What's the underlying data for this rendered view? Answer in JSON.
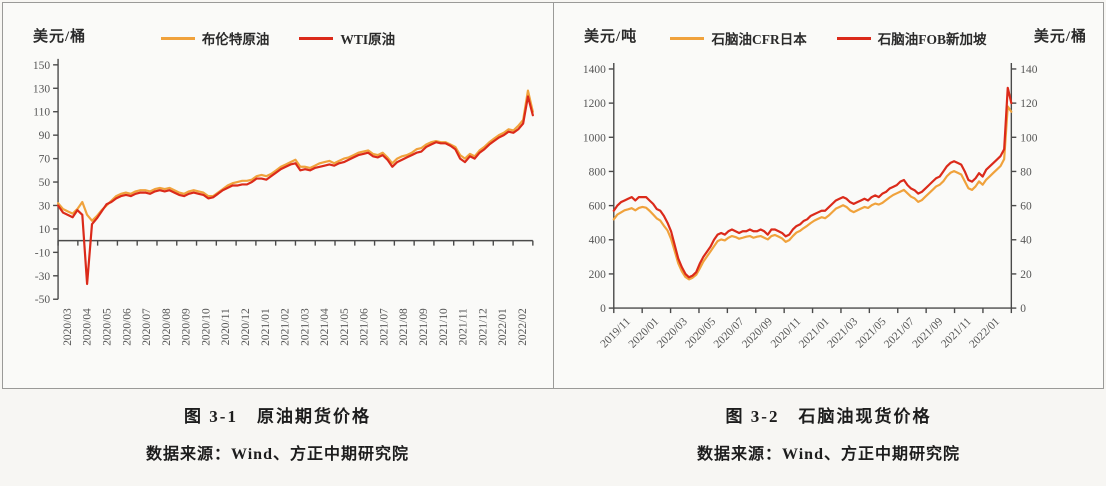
{
  "captions": {
    "left": {
      "title": "图 3-1　原油期货价格",
      "source": "数据来源：Wind、方正中期研究院"
    },
    "right": {
      "title": "图 3-2　石脑油现货价格",
      "source": "数据来源：Wind、方正中期研究院"
    }
  },
  "chart_data": [
    {
      "type": "line",
      "title": "原油期货价格",
      "unit_left": "美元/桶",
      "x_ticks": [
        "2020/03",
        "2020/04",
        "2020/05",
        "2020/06",
        "2020/07",
        "2020/08",
        "2020/09",
        "2020/10",
        "2020/11",
        "2020/12",
        "2021/01",
        "2021/02",
        "2021/03",
        "2021/04",
        "2021/05",
        "2021/06",
        "2021/07",
        "2021/08",
        "2021/09",
        "2021/10",
        "2021/11",
        "2021/12",
        "2022/01",
        "2022/02"
      ],
      "axes": {
        "left": {
          "min": -50,
          "max": 150,
          "ticks": [
            150,
            130,
            110,
            90,
            70,
            50,
            30,
            10,
            -10,
            -30,
            -50
          ]
        }
      },
      "grid": false,
      "legend_position": "top",
      "series": [
        {
          "name": "布伦特原油",
          "color": "#F0A23C",
          "axis": "left",
          "values": [
            32,
            27,
            25,
            23,
            27,
            33,
            22,
            17,
            21,
            26,
            30,
            34,
            38,
            40,
            41,
            40,
            42,
            43,
            43,
            42,
            44,
            45,
            44,
            45,
            43,
            41,
            40,
            42,
            43,
            42,
            41,
            38,
            38,
            41,
            44,
            47,
            49,
            50,
            51,
            51,
            52,
            55,
            56,
            55,
            57,
            60,
            63,
            65,
            67,
            69,
            63,
            63,
            62,
            64,
            66,
            67,
            68,
            66,
            68,
            70,
            71,
            73,
            75,
            76,
            77,
            74,
            73,
            75,
            71,
            66,
            70,
            72,
            73,
            75,
            78,
            79,
            82,
            84,
            85,
            84,
            84,
            82,
            80,
            73,
            70,
            74,
            72,
            77,
            80,
            84,
            87,
            90,
            92,
            95,
            94,
            98,
            103,
            128,
            110
          ]
        },
        {
          "name": "WTI原油",
          "color": "#DB2A1A",
          "axis": "left",
          "values": [
            30,
            24,
            22,
            20,
            26,
            22,
            -37,
            14,
            19,
            25,
            31,
            33,
            36,
            38,
            39,
            38,
            40,
            41,
            41,
            40,
            42,
            43,
            42,
            43,
            41,
            39,
            38,
            40,
            41,
            40,
            39,
            36,
            37,
            40,
            43,
            45,
            47,
            47,
            48,
            48,
            50,
            53,
            53,
            52,
            55,
            58,
            61,
            63,
            65,
            66,
            60,
            61,
            60,
            62,
            63,
            64,
            65,
            64,
            66,
            67,
            69,
            71,
            73,
            74,
            75,
            72,
            71,
            73,
            69,
            63,
            67,
            69,
            71,
            73,
            75,
            76,
            80,
            82,
            84,
            83,
            83,
            81,
            78,
            70,
            67,
            72,
            70,
            75,
            78,
            82,
            85,
            88,
            90,
            93,
            92,
            95,
            100,
            123,
            107
          ]
        }
      ]
    },
    {
      "type": "line",
      "title": "石脑油现货价格",
      "unit_left": "美元/吨",
      "unit_right": "美元/桶",
      "x_ticks": [
        "2019/11",
        "2020/01",
        "2020/03",
        "2020/05",
        "2020/07",
        "2020/09",
        "2020/11",
        "2021/01",
        "2021/03",
        "2021/05",
        "2021/07",
        "2021/09",
        "2021/11",
        "2022/01"
      ],
      "axes": {
        "left": {
          "min": 0,
          "max": 1400,
          "ticks": [
            1400,
            1200,
            1000,
            800,
            600,
            400,
            200,
            0
          ]
        },
        "right": {
          "min": 0,
          "max": 140,
          "ticks": [
            140,
            120,
            100,
            80,
            60,
            40,
            20,
            0
          ]
        }
      },
      "grid": false,
      "legend_position": "top",
      "series": [
        {
          "name": "石脑油CFR日本",
          "color": "#F0A23C",
          "axis": "left",
          "values": [
            520,
            548,
            560,
            572,
            578,
            585,
            572,
            586,
            592,
            588,
            570,
            548,
            525,
            512,
            482,
            455,
            405,
            335,
            262,
            215,
            182,
            168,
            178,
            195,
            232,
            272,
            302,
            332,
            362,
            392,
            402,
            396,
            412,
            422,
            416,
            406,
            412,
            418,
            422,
            412,
            418,
            422,
            412,
            402,
            422,
            428,
            418,
            408,
            388,
            398,
            422,
            442,
            452,
            468,
            482,
            498,
            512,
            522,
            532,
            526,
            542,
            562,
            582,
            592,
            602,
            592,
            572,
            562,
            572,
            582,
            592,
            586,
            602,
            612,
            606,
            616,
            632,
            648,
            662,
            672,
            682,
            692,
            672,
            652,
            642,
            622,
            632,
            652,
            672,
            692,
            712,
            722,
            742,
            772,
            792,
            802,
            792,
            782,
            742,
            702,
            692,
            712,
            742,
            722,
            752,
            772,
            792,
            812,
            832,
            872,
            1180,
            1150
          ]
        },
        {
          "name": "石脑油FOB新加坡",
          "color": "#DB2A1A",
          "axis": "right",
          "values": [
            57,
            60,
            62,
            63,
            64,
            65,
            63,
            65,
            65,
            65,
            63,
            61,
            58,
            57,
            54,
            50,
            45,
            37,
            29,
            24,
            20,
            18,
            19,
            21,
            26,
            30,
            33,
            36,
            40,
            43,
            44,
            43,
            45,
            46,
            45,
            44,
            45,
            45,
            46,
            45,
            45,
            46,
            45,
            43,
            46,
            46,
            45,
            44,
            42,
            43,
            46,
            48,
            49,
            51,
            52,
            54,
            55,
            56,
            57,
            57,
            59,
            61,
            63,
            64,
            65,
            64,
            62,
            61,
            62,
            63,
            64,
            63,
            65,
            66,
            65,
            67,
            68,
            70,
            71,
            72,
            74,
            75,
            72,
            70,
            69,
            67,
            68,
            70,
            72,
            74,
            76,
            77,
            80,
            83,
            85,
            86,
            85,
            84,
            80,
            75,
            74,
            76,
            79,
            77,
            81,
            83,
            85,
            87,
            89,
            93,
            129,
            120
          ]
        }
      ]
    }
  ]
}
